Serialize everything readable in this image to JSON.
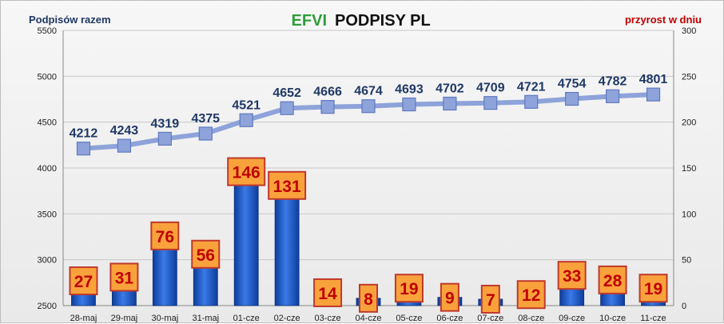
{
  "chart_data": {
    "type": "bar",
    "title_part1": "EFVI",
    "title_part2": "PODPISY PL",
    "left_axis_title": "Podpisów razem",
    "right_axis_title": "przyrost w dniu",
    "categories": [
      "28-maj",
      "29-maj",
      "30-maj",
      "31-maj",
      "01-cze",
      "02-cze",
      "03-cze",
      "04-cze",
      "05-cze",
      "06-cze",
      "07-cze",
      "08-cze",
      "09-cze",
      "10-cze",
      "11-cze"
    ],
    "series": [
      {
        "type": "bar",
        "axis": "right",
        "values": [
          27,
          31,
          76,
          56,
          146,
          131,
          14,
          8,
          19,
          9,
          7,
          12,
          33,
          28,
          19
        ]
      },
      {
        "type": "line",
        "axis": "left",
        "values": [
          4212,
          4243,
          4319,
          4375,
          4521,
          4652,
          4666,
          4674,
          4693,
          4702,
          4709,
          4721,
          4754,
          4782,
          4801
        ]
      }
    ],
    "left_ylim": [
      2500,
      5500
    ],
    "left_ticks": [
      "2500",
      "3000",
      "3500",
      "4000",
      "4500",
      "5000",
      "5500"
    ],
    "right_ylim": [
      0,
      300
    ],
    "right_ticks": [
      "0",
      "50",
      "100",
      "150",
      "200",
      "250",
      "300"
    ],
    "grid": true,
    "legend": "none",
    "colors": {
      "title_efvi": "#2e9e3a",
      "title_main": "#111111",
      "left_title": "#1f3864",
      "right_title": "#c00000",
      "bar": "#1f5fd0",
      "line": "#8ea3d9",
      "line_label": "#1f3864",
      "bar_label_text": "#c00000",
      "bar_label_fill": "#f9a23c",
      "bar_label_border": "#c0392b"
    }
  }
}
